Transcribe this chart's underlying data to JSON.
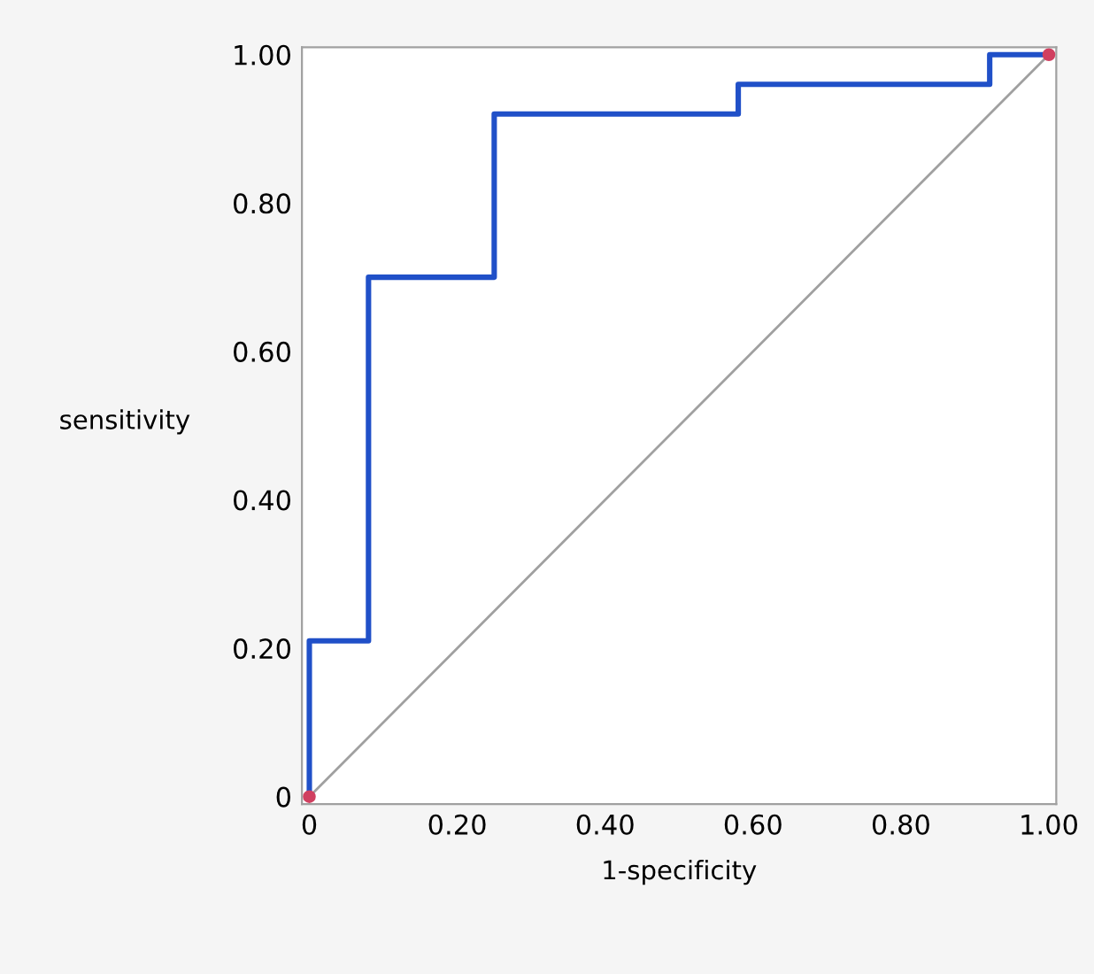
{
  "chart_data": {
    "type": "step",
    "xlabel": "1-specificity",
    "ylabel": "sensitivity",
    "xlim": [
      -0.01,
      1.01
    ],
    "ylim": [
      -0.01,
      1.01
    ],
    "xticks": [
      0,
      {
        "value": 0.2,
        "label": "0.20"
      },
      {
        "value": 0.4,
        "label": "0.40"
      },
      {
        "value": 0.6,
        "label": "0.60"
      },
      {
        "value": 0.8,
        "label": "0.80"
      },
      {
        "value": 1.0,
        "label": "1.00"
      }
    ],
    "yticks": [
      0,
      {
        "value": 0.2,
        "label": "0.20"
      },
      {
        "value": 0.4,
        "label": "0.40"
      },
      {
        "value": 0.6,
        "label": "0.60"
      },
      {
        "value": 0.8,
        "label": "0.80"
      },
      {
        "value": 1.0,
        "label": "1.00"
      }
    ],
    "grid": false,
    "legend": false,
    "series": [
      {
        "type": "line",
        "color": "#a0a0a0",
        "x": [
          0,
          1
        ],
        "values": [
          0,
          1
        ]
      },
      {
        "color": "#2050c8",
        "x": [
          0,
          0,
          0.08,
          0.25,
          0.58,
          0.92,
          1.0
        ],
        "values": [
          0,
          0.21,
          0.7,
          0.92,
          0.96,
          1.0,
          1.0
        ]
      },
      {
        "type": "scatter",
        "color": "#d04060",
        "x": [
          0,
          1
        ],
        "values": [
          0,
          1
        ]
      }
    ]
  }
}
